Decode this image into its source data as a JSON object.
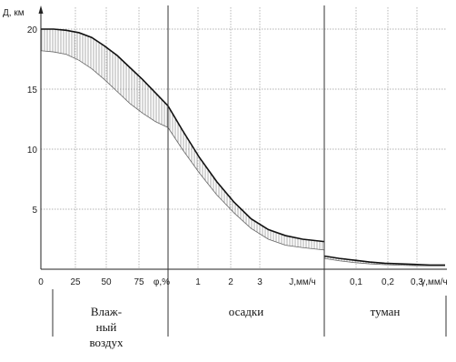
{
  "chart_data": {
    "type": "area",
    "ylabel": "Д, км",
    "ylim": [
      0,
      21
    ],
    "y_ticks": [
      "5",
      "10",
      "15",
      "20"
    ],
    "grid": true,
    "sections": [
      {
        "id": "air",
        "xlabel": "φ,%",
        "tick_labels": [
          "0",
          "25",
          "50",
          "75"
        ],
        "caption": [
          "Влаж-",
          "ный",
          "воздух"
        ],
        "x_range": [
          0,
          100
        ],
        "series": [
          {
            "name": "upper",
            "x": [
              0,
              10,
              20,
              30,
              40,
              50,
              60,
              70,
              80,
              90,
              100
            ],
            "values": [
              20.0,
              20.0,
              19.9,
              19.7,
              19.3,
              18.6,
              17.8,
              16.8,
              15.8,
              14.7,
              13.6
            ]
          },
          {
            "name": "lower",
            "x": [
              0,
              10,
              20,
              30,
              40,
              50,
              60,
              70,
              80,
              90,
              100
            ],
            "values": [
              18.2,
              18.1,
              17.9,
              17.4,
              16.7,
              15.8,
              14.8,
              13.8,
              13.0,
              12.3,
              11.8
            ]
          }
        ]
      },
      {
        "id": "rain",
        "xlabel": "J,мм/ч",
        "tick_labels": [
          "1",
          "2",
          "3"
        ],
        "tick_values": [
          1,
          2,
          3
        ],
        "caption": [
          "осадки"
        ],
        "x_range": [
          0.47,
          4.1
        ],
        "series": [
          {
            "name": "upper",
            "x": [
              0.47,
              0.8,
              1.2,
              1.6,
              2.0,
              2.4,
              2.8,
              3.2,
              3.6,
              4.1
            ],
            "values": [
              13.6,
              11.6,
              9.3,
              7.3,
              5.6,
              4.2,
              3.3,
              2.8,
              2.5,
              2.3
            ]
          },
          {
            "name": "lower",
            "x": [
              0.47,
              0.8,
              1.2,
              1.6,
              2.0,
              2.4,
              2.8,
              3.2,
              3.6,
              4.1
            ],
            "values": [
              11.8,
              10.0,
              8.0,
              6.2,
              4.7,
              3.4,
              2.5,
              2.0,
              1.8,
              1.6
            ]
          }
        ]
      },
      {
        "id": "fog",
        "xlabel": "γ,мм/ч",
        "tick_labels": [
          "0,1",
          "0,2",
          "0,3"
        ],
        "tick_values": [
          0.1,
          0.2,
          0.3
        ],
        "caption": [
          "туман"
        ],
        "x_range": [
          0.0,
          0.4
        ],
        "series": [
          {
            "name": "upper",
            "x": [
              0.0,
              0.05,
              0.1,
              0.15,
              0.2,
              0.25,
              0.3,
              0.35,
              0.4
            ],
            "values": [
              1.1,
              0.9,
              0.75,
              0.6,
              0.5,
              0.45,
              0.4,
              0.35,
              0.35
            ]
          },
          {
            "name": "lower",
            "x": [
              0.0,
              0.05,
              0.1,
              0.15,
              0.2,
              0.25,
              0.3,
              0.35,
              0.4
            ],
            "values": [
              0.9,
              0.7,
              0.55,
              0.45,
              0.38,
              0.33,
              0.3,
              0.28,
              0.28
            ]
          }
        ]
      }
    ]
  }
}
